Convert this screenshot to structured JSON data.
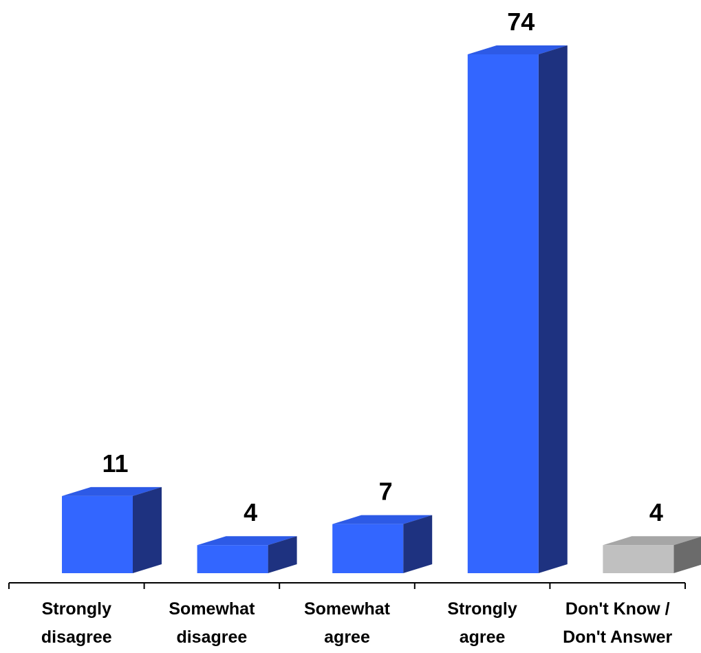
{
  "chart_data": {
    "type": "bar",
    "style": "3d-column",
    "categories": [
      [
        "Strongly",
        "disagree"
      ],
      [
        "Somewhat",
        "disagree"
      ],
      [
        "Somewhat",
        "agree"
      ],
      [
        "Strongly",
        "agree"
      ],
      [
        "Don't Know /",
        "Don't Answer"
      ]
    ],
    "values": [
      11,
      4,
      7,
      74,
      4
    ],
    "data_labels": [
      "11",
      "4",
      "7",
      "74",
      "4"
    ],
    "ylim": [
      0,
      74
    ],
    "grid": false,
    "legend": "none",
    "colors": {
      "bar_front": [
        "#3366ff",
        "#3366ff",
        "#3366ff",
        "#3366ff",
        "#c0c0c0"
      ],
      "bar_top": [
        "#2d5ae6",
        "#2d5ae6",
        "#2d5ae6",
        "#2d5ae6",
        "#a6a6a6"
      ],
      "bar_side": [
        "#1e3280",
        "#1e3280",
        "#1e3280",
        "#1e3280",
        "#6b6b6b"
      ],
      "axis": "#000000"
    }
  }
}
